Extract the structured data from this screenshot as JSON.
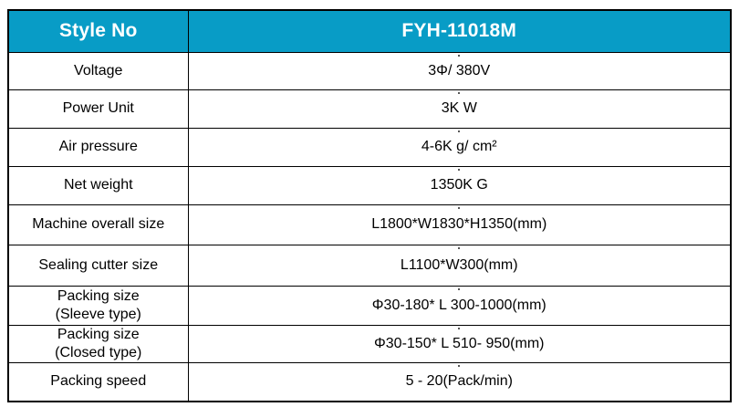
{
  "table": {
    "header": {
      "label": "Style No",
      "value": "FYH-11018M"
    },
    "rows": [
      {
        "label": "Voltage",
        "value": "3Φ/ 380V"
      },
      {
        "label": "Power Unit",
        "value": "3K W"
      },
      {
        "label": "Air pressure",
        "value": "4-6K g/ cm²"
      },
      {
        "label": "Net weight",
        "value": "1350K G"
      },
      {
        "label": "Machine overall size",
        "value": "L1800*W1830*H1350(mm)"
      },
      {
        "label": "Sealing cutter size",
        "value": "L1100*W300(mm)"
      },
      {
        "label": "Packing size",
        "label_line2": "(Sleeve type)",
        "value": "Φ30-180* L 300-1000(mm)"
      },
      {
        "label": "Packing size",
        "label_line2": "(Closed type)",
        "value": "Φ30-150* L 510- 950(mm)"
      },
      {
        "label": "Packing speed",
        "value": "5 - 20(Pack/min)"
      }
    ],
    "colors": {
      "header_bg": "#089CC6",
      "header_text": "#FFFFFF",
      "body_text": "#000000",
      "border": "#000000",
      "page_bg": "#FFFFFF"
    }
  }
}
